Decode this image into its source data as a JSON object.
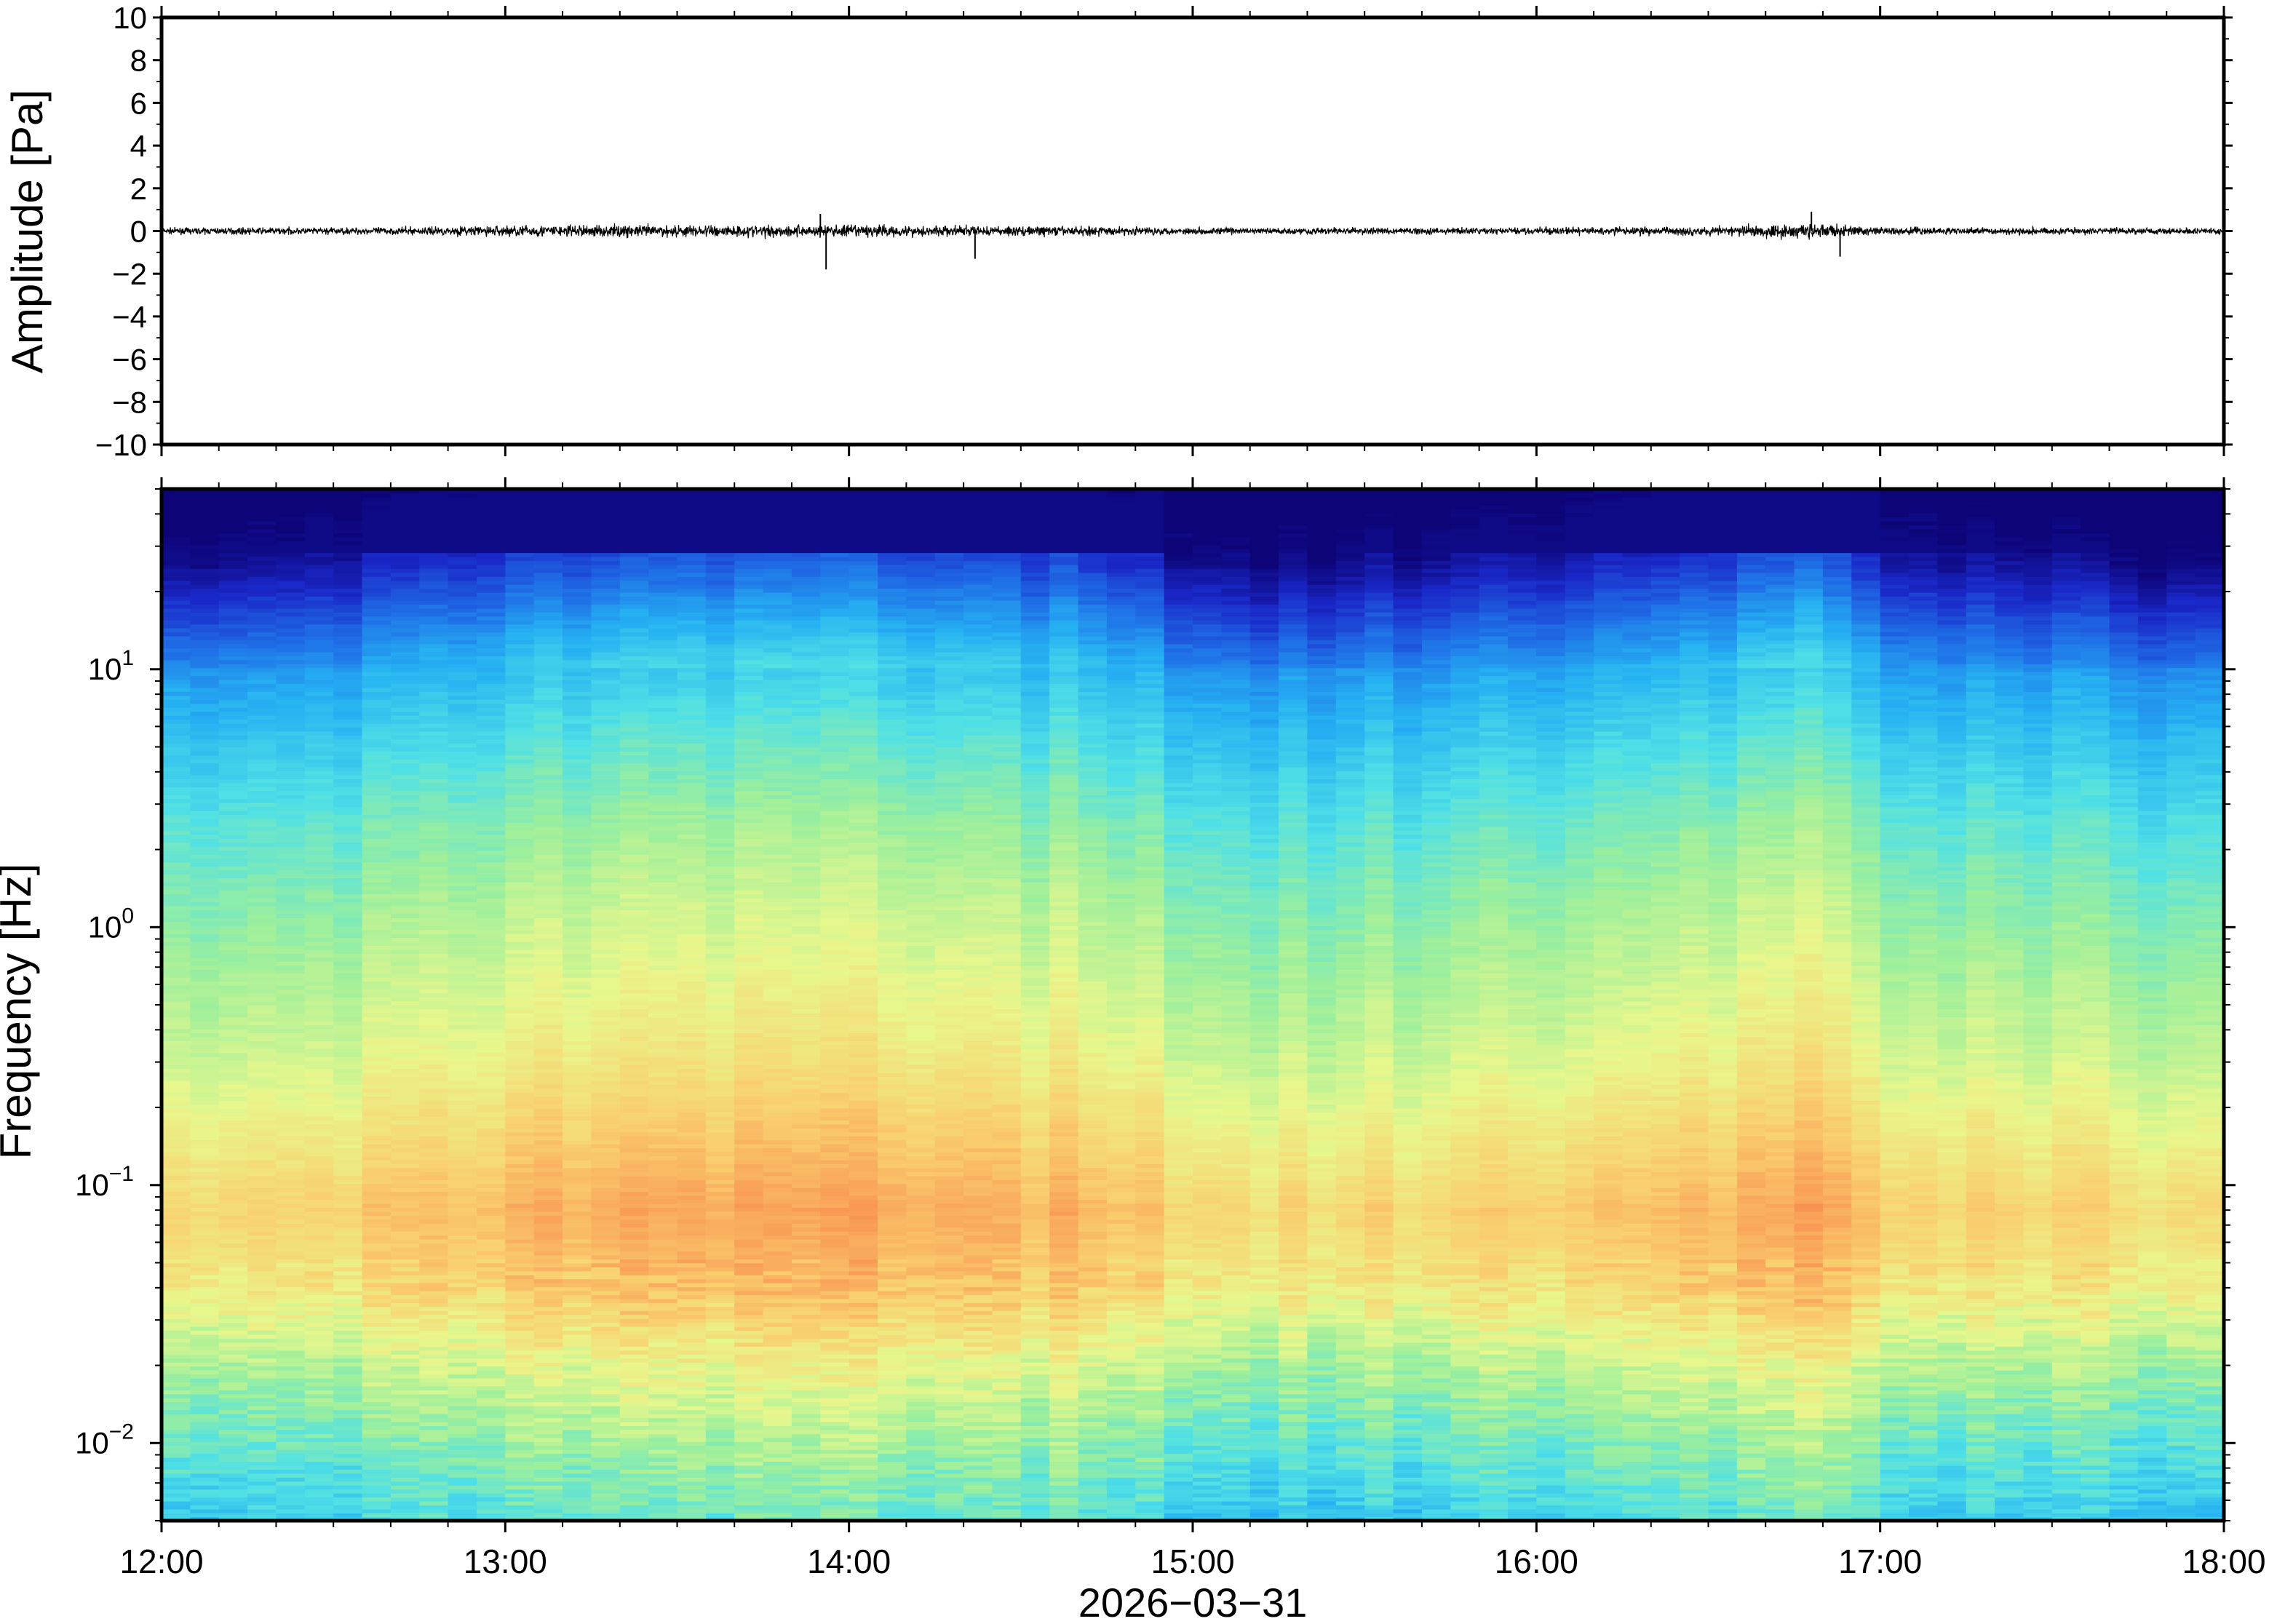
{
  "chart_data": [
    {
      "type": "line",
      "panel": "waveform",
      "ylabel": "Amplitude [Pa]",
      "xlim": [
        "12:00",
        "18:00"
      ],
      "ylim": [
        -10,
        10
      ],
      "y_ticks": [
        10,
        8,
        6,
        4,
        2,
        0,
        -2,
        -4,
        -6,
        -8,
        -10
      ],
      "y_tick_labels": [
        "10",
        "8",
        "6",
        "4",
        "2",
        "0",
        "−2",
        "−4",
        "−6",
        "−8",
        "−10"
      ],
      "series": [
        {
          "color": "#000000",
          "envelope_segments": {
            "x": [
              "12:00",
              "12:15",
              "12:30",
              "12:45",
              "13:00",
              "13:15",
              "13:30",
              "13:45",
              "14:00",
              "14:15",
              "14:30",
              "14:45",
              "15:00",
              "15:15",
              "15:30",
              "15:45",
              "16:00",
              "16:15",
              "16:30",
              "16:45",
              "17:00",
              "17:15",
              "17:30",
              "17:45"
            ],
            "amplitude": [
              0.25,
              0.3,
              0.3,
              0.35,
              0.5,
              0.55,
              0.55,
              0.55,
              0.55,
              0.5,
              0.45,
              0.4,
              0.3,
              0.3,
              0.3,
              0.3,
              0.3,
              0.35,
              0.4,
              0.7,
              0.35,
              0.3,
              0.3,
              0.3
            ]
          },
          "spikes": [
            {
              "x": "13:56",
              "y": -1.8
            },
            {
              "x": "13:55",
              "y": 0.8
            },
            {
              "x": "16:53",
              "y": -1.2
            },
            {
              "x": "16:48",
              "y": 0.9
            },
            {
              "x": "14:22",
              "y": -1.3
            }
          ]
        }
      ]
    },
    {
      "type": "heatmap",
      "panel": "spectrogram",
      "ylabel": "Frequency [Hz]",
      "xlabel": "2026−03−31",
      "x_tick_labels": [
        "12:00",
        "13:00",
        "14:00",
        "15:00",
        "16:00",
        "17:00",
        "18:00"
      ],
      "xlim": [
        "12:00",
        "18:00"
      ],
      "y_scale": "log",
      "ylim": [
        0.005,
        50
      ],
      "y_ticks": [
        {
          "base": "10",
          "exp": "1"
        },
        {
          "base": "10",
          "exp": "0"
        },
        {
          "base": "10",
          "exp": "−1"
        },
        {
          "base": "10",
          "exp": "−2"
        }
      ],
      "colormap": [
        "#0d0478",
        "#1a28c8",
        "#1f6de6",
        "#25b0f2",
        "#4fe0e6",
        "#9cef9c",
        "#e8f78c",
        "#f9d070",
        "#f99a55",
        "#ea4a3a"
      ],
      "time_columns": [
        "12:00",
        "12:15",
        "12:30",
        "12:45",
        "13:00",
        "13:15",
        "13:30",
        "13:45",
        "14:00",
        "14:15",
        "14:30",
        "14:45",
        "15:00",
        "15:15",
        "15:30",
        "15:45",
        "16:00",
        "16:15",
        "16:30",
        "16:45",
        "17:00",
        "17:15",
        "17:30",
        "17:45"
      ],
      "level_points": {
        "log10_frequency": [
          -2.3,
          -2.0,
          -1.7,
          -1.4,
          -1.1,
          -0.8,
          -0.5,
          -0.2,
          0.1,
          0.4,
          0.7,
          1.0,
          1.2,
          1.4,
          1.7
        ],
        "default_profile": [
          0.43,
          0.52,
          0.62,
          0.75,
          0.8,
          0.73,
          0.66,
          0.61,
          0.56,
          0.5,
          0.42,
          0.33,
          0.22,
          0.1,
          0.0
        ]
      },
      "column_offsets": [
        -0.05,
        -0.03,
        -0.02,
        0.0,
        0.03,
        0.05,
        0.06,
        0.06,
        0.07,
        0.05,
        0.04,
        0.03,
        -0.04,
        -0.05,
        -0.04,
        -0.03,
        -0.02,
        0.0,
        0.02,
        0.08,
        0.0,
        -0.03,
        -0.04,
        -0.05
      ]
    }
  ]
}
